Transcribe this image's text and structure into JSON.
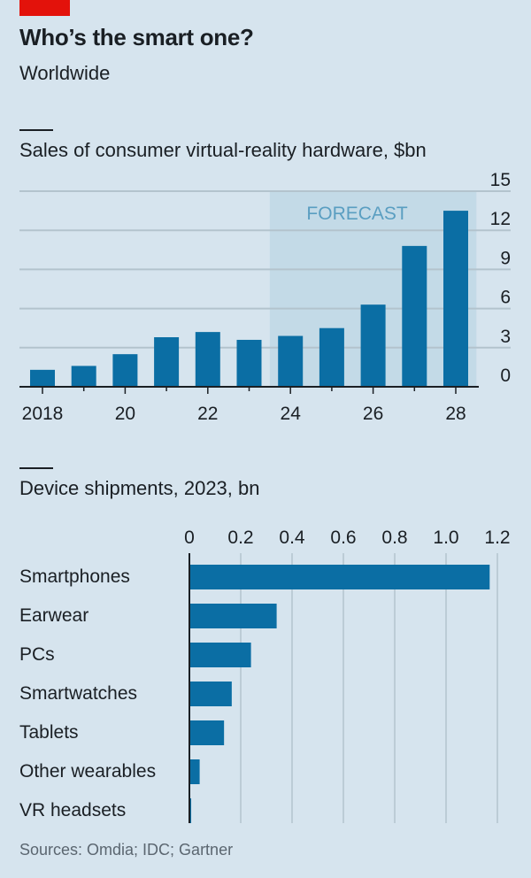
{
  "header": {
    "title": "Who’s the smart one?",
    "subtitle": "Worldwide"
  },
  "colors": {
    "background": "#d6e4ee",
    "bar": "#0b6ea4",
    "forecast_shade": "#c3dae7",
    "forecast_text": "#5a9ec1",
    "gridline": "#b3c3cd",
    "axis": "#1a1f24",
    "brand_red": "#e3120b"
  },
  "chart_data": [
    {
      "type": "bar",
      "title": "Sales of consumer virtual-reality hardware, $bn",
      "xlabel": "",
      "ylabel": "",
      "categories": [
        "2018",
        "2019",
        "2020",
        "2021",
        "2022",
        "2023",
        "2024",
        "2025",
        "2026",
        "2027",
        "2028"
      ],
      "values": [
        1.3,
        1.6,
        2.5,
        3.8,
        4.2,
        3.6,
        3.9,
        4.5,
        6.3,
        10.8,
        13.5
      ],
      "x_tick_labels": [
        "2018",
        "20",
        "22",
        "24",
        "26",
        "28"
      ],
      "y_tick_labels": [
        "0",
        "3",
        "6",
        "9",
        "12",
        "15"
      ],
      "ylim": [
        0,
        15
      ],
      "grid": true,
      "annotation": "FORECAST",
      "forecast_range": [
        "2024",
        "2028"
      ]
    },
    {
      "type": "bar",
      "orientation": "horizontal",
      "title": "Device shipments, 2023, bn",
      "categories": [
        "Smartphones",
        "Earwear",
        "PCs",
        "Smartwatches",
        "Tablets",
        "Other wearables",
        "VR headsets"
      ],
      "values": [
        1.17,
        0.34,
        0.24,
        0.165,
        0.135,
        0.04,
        0.007
      ],
      "x_tick_labels": [
        "0",
        "0.2",
        "0.4",
        "0.6",
        "0.8",
        "1.0",
        "1.2"
      ],
      "xlim": [
        0,
        1.2
      ],
      "grid": true
    }
  ],
  "footer": {
    "source": "Sources: Omdia; IDC; Gartner"
  }
}
